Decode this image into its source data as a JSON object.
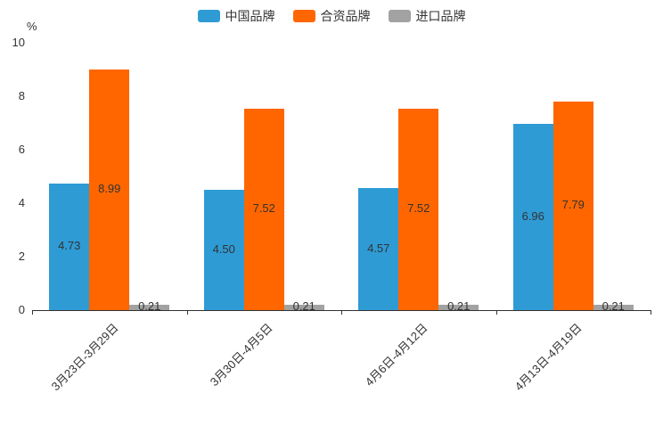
{
  "chart_data": {
    "type": "bar",
    "title": "",
    "unit": "%",
    "categories": [
      "3月23日-3月29日",
      "3月30日-4月5日",
      "4月6日-4月12日",
      "4月13日-4月19日"
    ],
    "series": [
      {
        "name": "中国品牌",
        "color": "#2E9BD5",
        "values": [
          4.73,
          4.5,
          4.57,
          6.96
        ]
      },
      {
        "name": "合资品牌",
        "color": "#FF6600",
        "values": [
          8.99,
          7.52,
          7.52,
          7.79
        ]
      },
      {
        "name": "进口品牌",
        "color": "#A2A2A2",
        "values": [
          0.21,
          0.21,
          0.21,
          0.21
        ]
      }
    ],
    "ylim": [
      0,
      10
    ],
    "yticks": [
      0,
      2,
      4,
      6,
      8,
      10
    ],
    "legend_position": "top",
    "grid": false,
    "axis_color": "#333333",
    "label_color": "#333333"
  }
}
